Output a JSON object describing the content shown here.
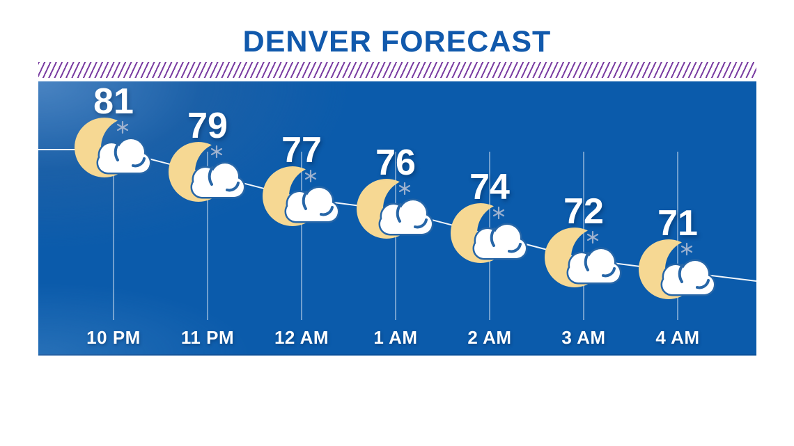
{
  "page": {
    "title": "DENVER FORECAST"
  },
  "theme": {
    "title_color": "#1159AC",
    "hatch_color": "#7A3DA2",
    "panel_base": "#0B5BAB",
    "panel_light": "#4A84C2",
    "gridline_color": "rgba(255,255,255,0.42)",
    "trendline_color": "#FFFFFF",
    "temp_color": "#FFFFFF",
    "label_color": "#FFFFFF",
    "moon_color": "#F6D893",
    "cloud_color": "#FFFFFF",
    "cloud_outline_color": "#2766A7",
    "sparkle_color": "#A8B8D2"
  },
  "chart_data": {
    "type": "line",
    "title": "DENVER FORECAST",
    "x": [
      "10 PM",
      "11 PM",
      "12 AM",
      "1 AM",
      "2 AM",
      "3 AM",
      "4 AM"
    ],
    "series": [
      {
        "name": "Temperature",
        "values": [
          81,
          79,
          77,
          76,
          74,
          72,
          71
        ]
      }
    ],
    "point_icon": "moon-with-cloud-partly-cloudy-night",
    "legend": "none",
    "grid": "vertical-ticks",
    "y_implied_range": [
      68,
      84
    ]
  }
}
